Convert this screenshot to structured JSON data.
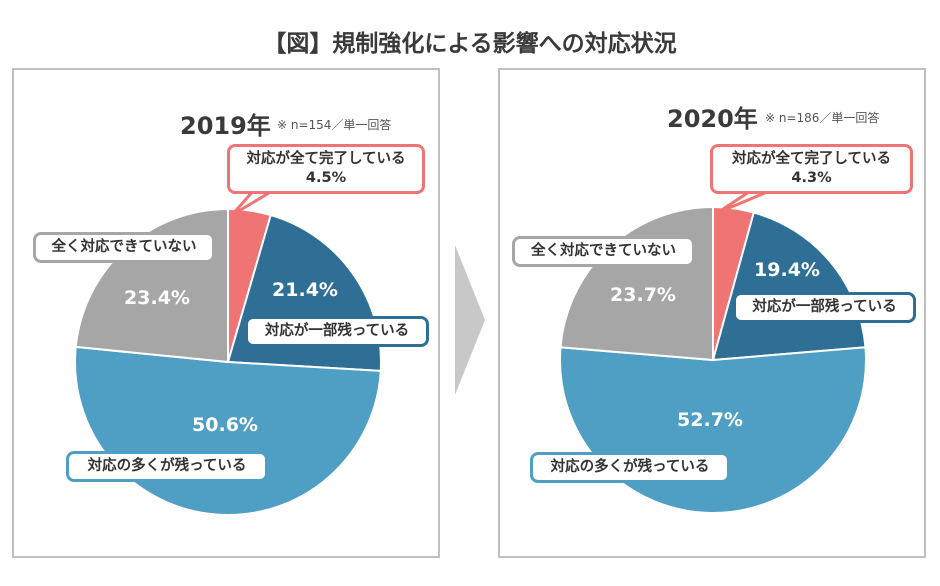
{
  "title": "【図】規制強化による影響への対応状況",
  "colors": {
    "complete": "#f07474",
    "partial": "#2f6f96",
    "many": "#4f9fc5",
    "none": "#a6a6a6"
  },
  "chart_data": [
    {
      "type": "pie",
      "title": "2019年",
      "note": "※ n=154／単一回答",
      "categories": [
        "対応が全て完了している",
        "対応が一部残っている",
        "対応の多くが残っている",
        "全く対応できていない"
      ],
      "values": [
        4.5,
        21.4,
        50.6,
        23.4
      ],
      "labels": [
        "4.5%",
        "21.4%",
        "50.6%",
        "23.4%"
      ]
    },
    {
      "type": "pie",
      "title": "2020年",
      "note": "※ n=186／単一回答",
      "categories": [
        "対応が全て完了している",
        "対応が一部残っている",
        "対応の多くが残っている",
        "全く対応できていない"
      ],
      "values": [
        4.3,
        19.4,
        52.7,
        23.7
      ],
      "labels": [
        "4.3%",
        "19.4%",
        "52.7%",
        "23.7%"
      ]
    }
  ]
}
